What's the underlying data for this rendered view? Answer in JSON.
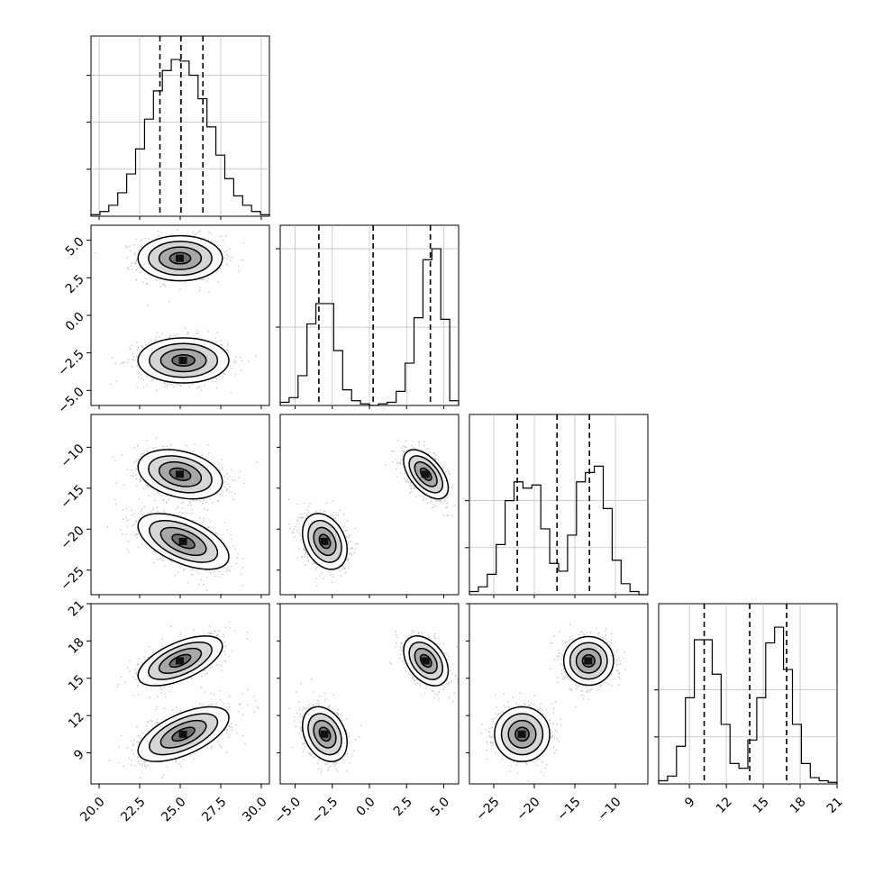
{
  "chart_data": {
    "type": "corner",
    "description_of_kind": "corner plot of a 4-parameter sample (two-mode mixture)",
    "n_params": 4,
    "axis_ranges": [
      [
        19.5,
        30.5
      ],
      [
        -6.0,
        6.0
      ],
      [
        -28.0,
        -6.0
      ],
      [
        6.5,
        21.0
      ]
    ],
    "ticks": [
      {
        "values": [
          20.0,
          22.5,
          25.0,
          27.5,
          30.0
        ],
        "labels": [
          "20.0",
          "22.5",
          "25.0",
          "27.5",
          "30.0"
        ]
      },
      {
        "values": [
          -5.0,
          -2.5,
          0.0,
          2.5,
          5.0
        ],
        "labels": [
          "−5.0",
          "−2.5",
          "0.0",
          "2.5",
          "5.0"
        ]
      },
      {
        "values": [
          -25,
          -20,
          -15,
          -10
        ],
        "labels": [
          "−25",
          "−20",
          "−15",
          "−10"
        ]
      },
      {
        "values": [
          9,
          12,
          15,
          18,
          21
        ],
        "labels": [
          "9",
          "12",
          "15",
          "18",
          "21"
        ]
      }
    ],
    "quantiles": [
      [
        23.75,
        25.05,
        26.4
      ],
      [
        -3.4,
        0.25,
        4.1
      ],
      [
        -22.1,
        -17.2,
        -13.2
      ],
      [
        10.2,
        13.9,
        16.9
      ]
    ],
    "histograms": [
      [
        0.01,
        0.03,
        0.07,
        0.15,
        0.27,
        0.43,
        0.62,
        0.8,
        0.93,
        1.0,
        0.99,
        0.9,
        0.75,
        0.57,
        0.39,
        0.24,
        0.13,
        0.07,
        0.03,
        0.01
      ],
      [
        0.02,
        0.05,
        0.19,
        0.52,
        0.65,
        0.65,
        0.35,
        0.1,
        0.03,
        0.01,
        0.0,
        0.01,
        0.02,
        0.09,
        0.27,
        0.56,
        0.93,
        1.0,
        0.55,
        0.03
      ],
      [
        0.02,
        0.05,
        0.13,
        0.32,
        0.6,
        0.72,
        0.68,
        0.7,
        0.42,
        0.2,
        0.15,
        0.38,
        0.72,
        0.78,
        0.82,
        0.55,
        0.22,
        0.07,
        0.02,
        0.0
      ],
      [
        0.02,
        0.05,
        0.24,
        0.55,
        0.92,
        0.92,
        0.7,
        0.38,
        0.13,
        0.1,
        0.28,
        0.55,
        0.9,
        1.0,
        0.73,
        0.38,
        0.13,
        0.04,
        0.02,
        0.01
      ]
    ],
    "histogram_ylim_top": 1.15,
    "hist_gridlines": [
      [
        0.3,
        0.6,
        0.9
      ],
      [
        0.5,
        1.0
      ],
      [
        0.3,
        0.6
      ],
      [
        0.3,
        0.6
      ]
    ],
    "modes": [
      {
        "center": [
          25.0,
          3.8,
          -13.3,
          16.4
        ],
        "std": [
          1.3,
          0.75,
          1.5,
          1.0
        ],
        "correlations": {
          "0-1": 0.0,
          "0-2": -0.3,
          "0-3": 0.6,
          "1-2": -0.55,
          "1-3": -0.4,
          "2-3": 0.0
        }
      },
      {
        "center": [
          25.2,
          -3.0,
          -21.5,
          10.5
        ],
        "std": [
          1.4,
          0.75,
          1.7,
          1.1
        ],
        "correlations": {
          "0-1": 0.0,
          "0-2": -0.55,
          "0-3": 0.6,
          "1-2": -0.3,
          "1-3": -0.3,
          "2-3": 0.0
        }
      }
    ],
    "contour_levels_sigma": [
      0.5,
      1.0,
      1.5,
      2.0
    ],
    "grid": true,
    "colors": {
      "line": "#000000",
      "points": "#999999",
      "grid": "#b0b0b0"
    }
  }
}
